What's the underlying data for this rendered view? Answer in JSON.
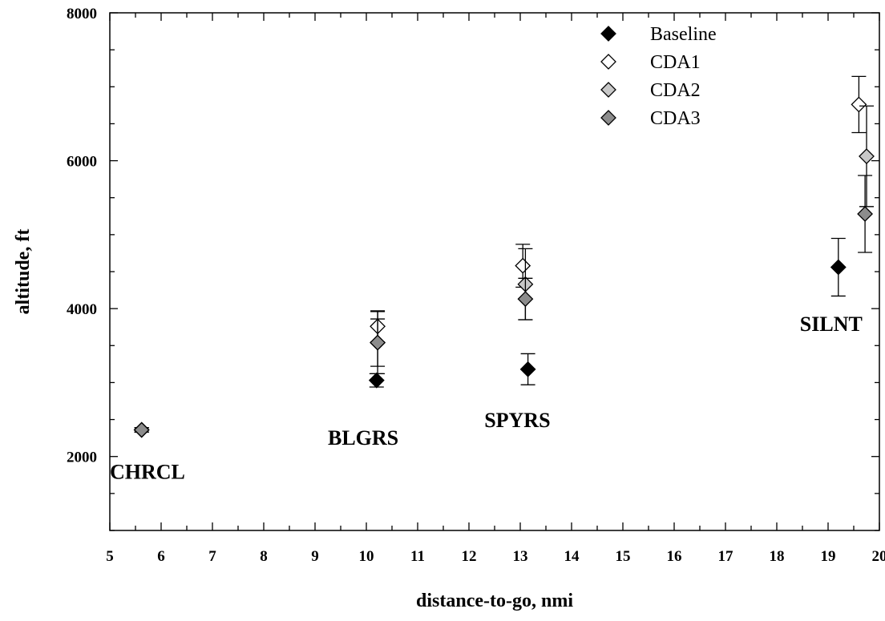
{
  "chart_data": {
    "type": "scatter",
    "title": "",
    "xlabel": "distance-to-go, nmi",
    "ylabel": "altitude, ft",
    "xlim": [
      5,
      20
    ],
    "ylim": [
      1000,
      8000
    ],
    "x_ticks": [
      "5",
      "6",
      "7",
      "8",
      "9",
      "10",
      "11",
      "12",
      "13",
      "14",
      "15",
      "16",
      "17",
      "18",
      "19",
      "20"
    ],
    "y_ticks": [
      "2000",
      "4000",
      "6000",
      "8000"
    ],
    "grid": false,
    "legend_position": "top-right",
    "series": [
      {
        "name": "Baseline",
        "fill": "#000000",
        "points": [
          {
            "x": 5.62,
            "y": 2360,
            "err": 30
          },
          {
            "x": 10.2,
            "y": 3030,
            "err": 90
          },
          {
            "x": 13.15,
            "y": 3180,
            "err": 210
          },
          {
            "x": 19.2,
            "y": 4560,
            "err": 390
          }
        ]
      },
      {
        "name": "CDA1",
        "fill": "#ffffff",
        "points": [
          {
            "x": 5.62,
            "y": 2360,
            "err": 30
          },
          {
            "x": 10.22,
            "y": 3760,
            "err": 210
          },
          {
            "x": 13.05,
            "y": 4580,
            "err": 290
          },
          {
            "x": 19.6,
            "y": 6760,
            "err": 380
          }
        ]
      },
      {
        "name": "CDA2",
        "fill": "#c8c8c8",
        "points": [
          {
            "x": 5.62,
            "y": 2360,
            "err": 30
          },
          {
            "x": 10.22,
            "y": 3540,
            "err": 420
          },
          {
            "x": 13.1,
            "y": 4330,
            "err": 480
          },
          {
            "x": 19.75,
            "y": 6060,
            "err": 680
          }
        ]
      },
      {
        "name": "CDA3",
        "fill": "#8c8c8c",
        "points": [
          {
            "x": 5.62,
            "y": 2360,
            "err": 30
          },
          {
            "x": 10.22,
            "y": 3540,
            "err": 320
          },
          {
            "x": 13.1,
            "y": 4130,
            "err": 280
          },
          {
            "x": 19.72,
            "y": 5280,
            "err": 520
          }
        ]
      }
    ],
    "annotations": [
      {
        "text": "CHRCL",
        "x": 5.0,
        "y": 1700
      },
      {
        "text": "BLGRS",
        "x": 9.25,
        "y": 2160
      },
      {
        "text": "SPYRS",
        "x": 12.3,
        "y": 2400
      },
      {
        "text": "SILNT",
        "x": 18.45,
        "y": 3700
      }
    ]
  }
}
